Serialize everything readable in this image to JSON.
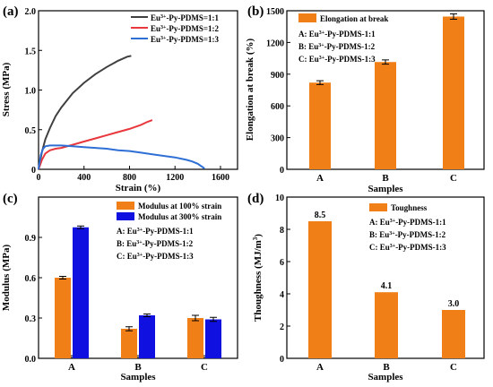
{
  "chart_data": [
    {
      "panel": "(a)",
      "type": "line",
      "xlabel": "Strain (%)",
      "ylabel": "Stress (MPa)",
      "xlim": [
        0,
        1750
      ],
      "ylim": [
        0,
        2.0
      ],
      "xticks": [
        0,
        400,
        800,
        1200,
        1600
      ],
      "yticks": [
        0.0,
        0.5,
        1.0,
        1.5,
        2.0
      ],
      "ytick_labels": [
        "0",
        "0.5",
        "1.0",
        "1.5",
        "2.0"
      ],
      "legend_position": "top-right",
      "series": [
        {
          "name_base": "Eu",
          "name_sup": "3+",
          "name_rest": "-Py-PDMS=1:1",
          "color": "#404040",
          "x": [
            0,
            30,
            60,
            100,
            150,
            200,
            300,
            400,
            500,
            600,
            700,
            780,
            815
          ],
          "y": [
            0,
            0.22,
            0.38,
            0.52,
            0.67,
            0.78,
            0.96,
            1.09,
            1.2,
            1.29,
            1.37,
            1.42,
            1.43
          ]
        },
        {
          "name_base": "Eu",
          "name_sup": "3+",
          "name_rest": "-Py-PDMS=1:2",
          "color": "#e8383d",
          "x": [
            0,
            30,
            60,
            100,
            150,
            200,
            300,
            400,
            500,
            600,
            700,
            800,
            900,
            960,
            1000
          ],
          "y": [
            0,
            0.12,
            0.2,
            0.24,
            0.26,
            0.27,
            0.31,
            0.35,
            0.39,
            0.43,
            0.47,
            0.51,
            0.56,
            0.6,
            0.62
          ]
        },
        {
          "name_base": "Eu",
          "name_sup": "3+",
          "name_rest": "-Py-PDMS=1:3",
          "color": "#2e6fd6",
          "x": [
            0,
            20,
            40,
            60,
            100,
            150,
            200,
            300,
            400,
            500,
            600,
            700,
            800,
            900,
            1000,
            1100,
            1200,
            1300,
            1350,
            1400,
            1440,
            1460
          ],
          "y": [
            0,
            0.18,
            0.26,
            0.29,
            0.3,
            0.3,
            0.3,
            0.29,
            0.28,
            0.27,
            0.26,
            0.24,
            0.23,
            0.21,
            0.19,
            0.17,
            0.15,
            0.12,
            0.1,
            0.07,
            0.03,
            0.01
          ]
        }
      ]
    },
    {
      "panel": "(b)",
      "type": "bar",
      "xlabel": "Samples",
      "ylabel": "Elongation at break (%)",
      "categories": [
        "A",
        "B",
        "C"
      ],
      "values": [
        820,
        1015,
        1445
      ],
      "errors": [
        18,
        20,
        25
      ],
      "ylim": [
        0,
        1500
      ],
      "yticks": [
        0,
        300,
        600,
        900,
        1200,
        1500
      ],
      "color": "#f07f17",
      "legend": {
        "name": "Elongation at break",
        "position": "top-left"
      },
      "notes": [
        {
          "base": "A: Eu",
          "sup": "3+",
          "rest": "-Py-PDMS-1:1"
        },
        {
          "base": "B: Eu",
          "sup": "3+",
          "rest": "-Py-PDMS-1:2"
        },
        {
          "base": "C: Eu",
          "sup": "3+",
          "rest": "-Py-PDMS-1:3"
        }
      ]
    },
    {
      "panel": "(c)",
      "type": "bar",
      "xlabel": "Samples",
      "ylabel": "Modulus (MPa)",
      "categories": [
        "A",
        "B",
        "C"
      ],
      "ylim": [
        0,
        1.2
      ],
      "yticks": [
        0.0,
        0.3,
        0.6,
        0.9
      ],
      "ytick_labels": [
        "0.0",
        "0.3",
        "0.6",
        "0.9"
      ],
      "legend_position": "top-right",
      "series": [
        {
          "name": "Modulus at 100% strain",
          "color": "#f07f17",
          "values": [
            0.6,
            0.22,
            0.3
          ],
          "errors": [
            0.01,
            0.015,
            0.02
          ]
        },
        {
          "name": "Modulus at 300% strain",
          "color": "#1010e0",
          "values": [
            0.975,
            0.32,
            0.29
          ],
          "errors": [
            0.01,
            0.01,
            0.015
          ]
        }
      ],
      "notes": [
        {
          "base": "A: Eu",
          "sup": "3+",
          "rest": "-Py-PDMS-1:1"
        },
        {
          "base": "B: Eu",
          "sup": "3+",
          "rest": "-Py-PDMS-1:2"
        },
        {
          "base": "C: Eu",
          "sup": "3+",
          "rest": "-Py-PDMS-1:3"
        }
      ]
    },
    {
      "panel": "(d)",
      "type": "bar",
      "xlabel": "Samples",
      "ylabel_base": "Thoughness (MJ/m",
      "ylabel_sup": "3",
      "ylabel_end": ")",
      "categories": [
        "A",
        "B",
        "C"
      ],
      "values": [
        8.5,
        4.1,
        3.0
      ],
      "value_labels": [
        "8.5",
        "4.1",
        "3.0"
      ],
      "ylim": [
        0,
        10
      ],
      "yticks": [
        0,
        2,
        4,
        6,
        8,
        10
      ],
      "color": "#f07f17",
      "legend": {
        "name": "Toughness",
        "position": "top-right"
      },
      "notes": [
        {
          "base": "A: Eu",
          "sup": "3+",
          "rest": "-Py-PDMS-1:1"
        },
        {
          "base": "B: Eu",
          "sup": "3+",
          "rest": "-Py-PDMS-1:2"
        },
        {
          "base": "C: Eu",
          "sup": "3+",
          "rest": "-Py-PDMS-1:3"
        }
      ]
    }
  ]
}
